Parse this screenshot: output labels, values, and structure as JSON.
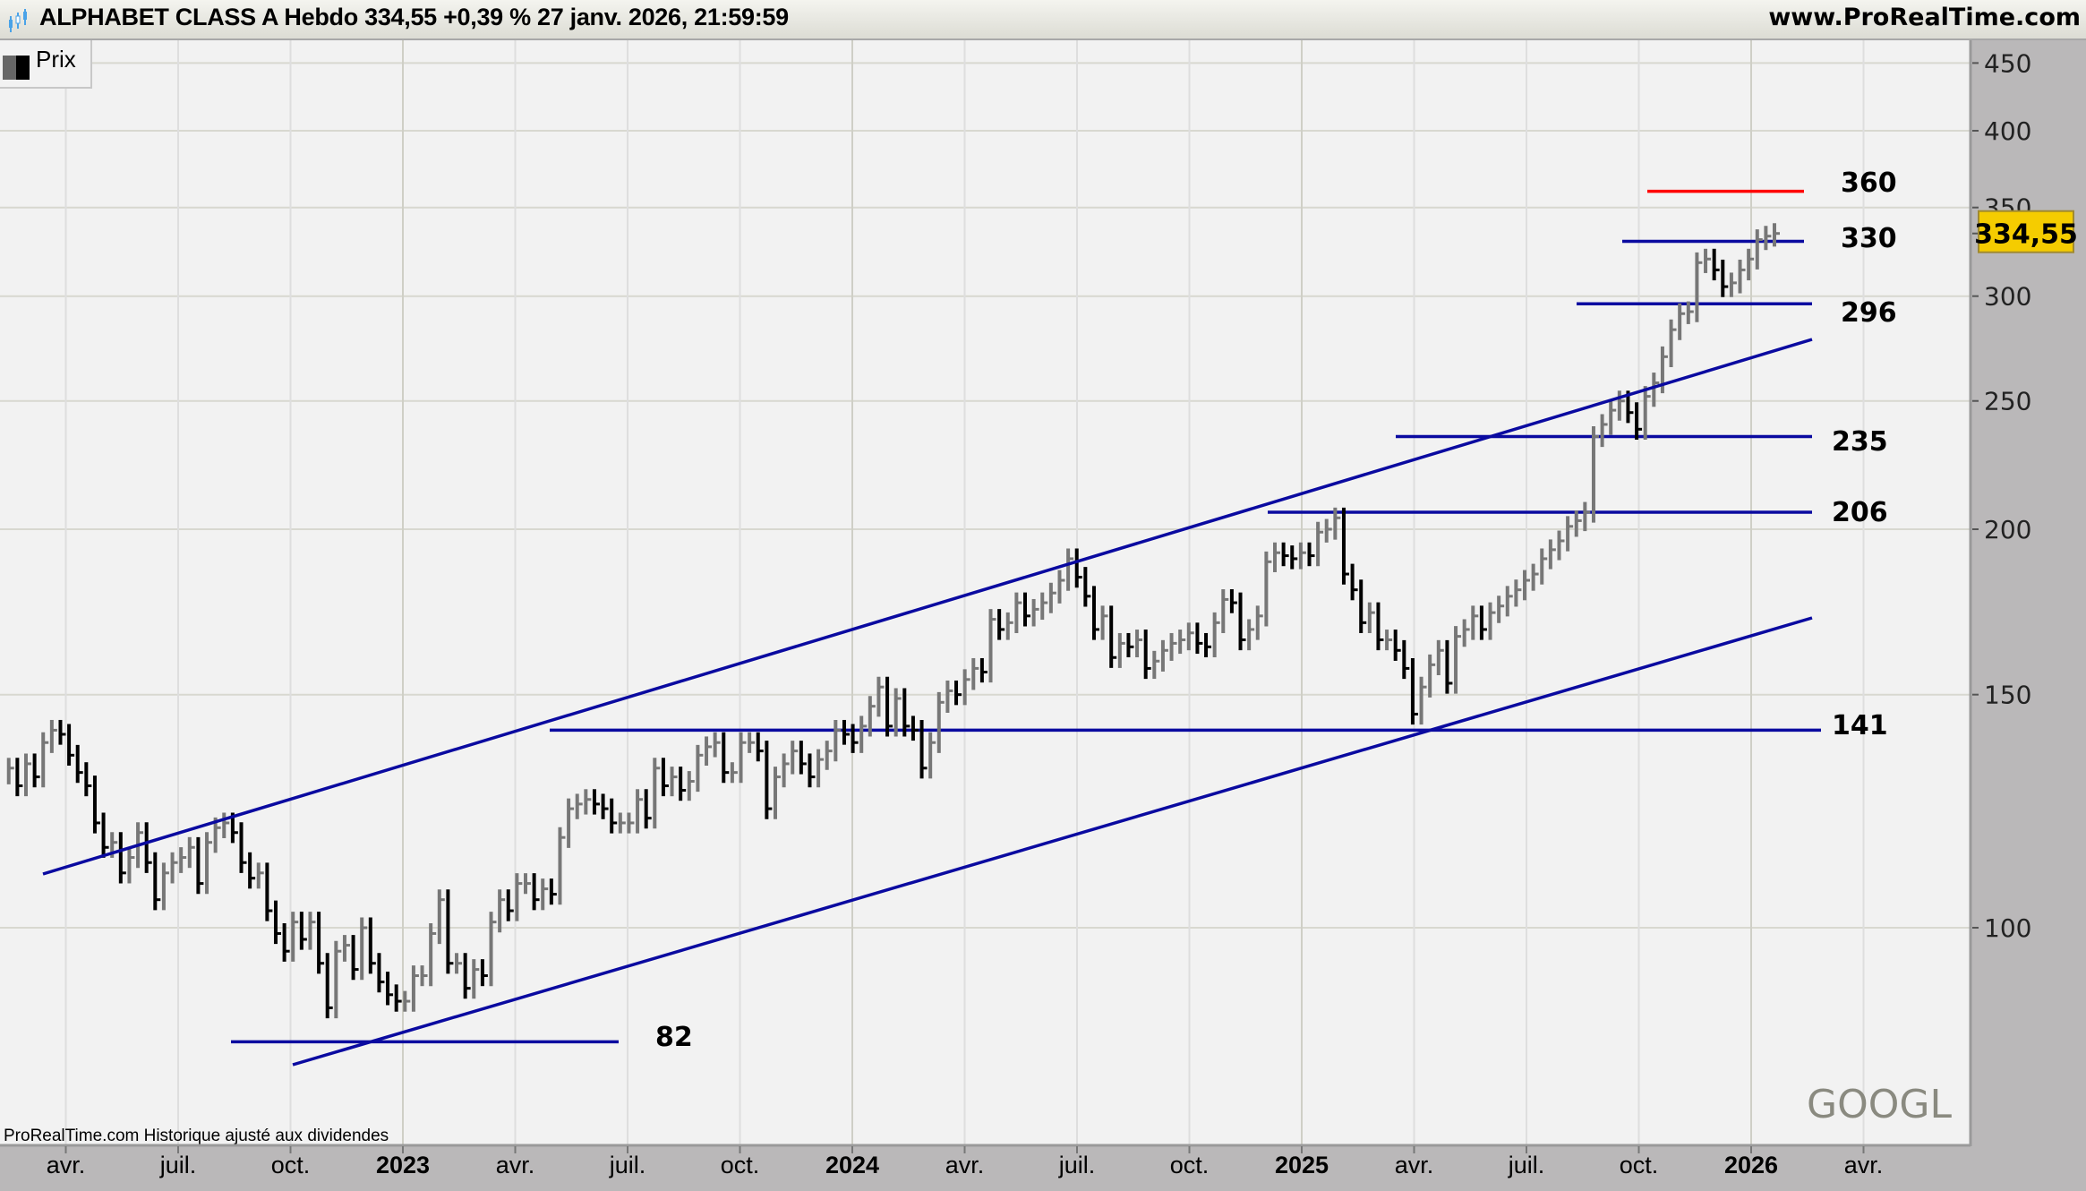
{
  "header": {
    "title": "ALPHABET CLASS A Hebdo 334,55 +0,39 % 27 janv. 2026, 21:59:59",
    "site": "www.ProRealTime.com"
  },
  "legend": {
    "label": "Prix"
  },
  "footer": {
    "text": "ProRealTime.com  Historique ajusté aux dividendes"
  },
  "watermark": "GOOGL",
  "colors": {
    "channel": "#0a0aa0",
    "target": "#ff0000",
    "up_bar": "#777777",
    "down_bar": "#000000",
    "last_price_bg": "#f5cc00",
    "axis_bg": "#bab8b9"
  },
  "chart_data": {
    "type": "ohlc-bar",
    "scale": "log",
    "title": "ALPHABET CLASS A Hebdo",
    "ylim": [
      68,
      470
    ],
    "y_ticks": [
      "100",
      "150",
      "200",
      "250",
      "300",
      "350",
      "400",
      "450"
    ],
    "y_tick_values": [
      100,
      150,
      200,
      250,
      300,
      350,
      400,
      450
    ],
    "x_ticks": [
      "avr.",
      "juil.",
      "oct.",
      "2023",
      "avr.",
      "juil.",
      "oct.",
      "2024",
      "avr.",
      "juil.",
      "oct.",
      "2025",
      "avr.",
      "juil.",
      "oct.",
      "2026",
      "avr."
    ],
    "first_week": "2022-02-14",
    "weekly_closes": [
      132,
      128,
      133,
      130,
      138,
      141,
      140,
      135,
      131,
      128,
      120,
      115,
      116,
      110,
      113,
      118,
      112,
      105,
      110,
      112,
      113,
      115,
      108,
      116,
      119,
      120,
      118,
      112,
      109,
      110,
      103,
      99,
      96,
      101,
      98,
      101,
      94,
      87,
      96,
      97,
      93,
      100,
      94,
      91,
      89,
      88,
      88,
      92,
      92,
      99,
      105,
      94,
      94,
      90,
      93,
      92,
      101,
      105,
      103,
      108,
      108,
      105,
      107,
      106,
      117,
      123,
      124,
      125,
      124,
      123,
      120,
      120,
      120,
      125,
      121,
      132,
      128,
      130,
      127,
      129,
      135,
      137,
      138,
      131,
      131,
      138,
      138,
      136,
      123,
      130,
      133,
      136,
      133,
      130,
      134,
      136,
      141,
      140,
      138,
      142,
      147,
      152,
      142,
      149,
      142,
      141,
      132,
      138,
      148,
      151,
      150,
      154,
      157,
      156,
      171,
      168,
      170,
      176,
      172,
      174,
      176,
      179,
      183,
      190,
      184,
      178,
      168,
      172,
      160,
      164,
      163,
      165,
      157,
      159,
      162,
      164,
      165,
      167,
      164,
      163,
      170,
      177,
      176,
      165,
      168,
      172,
      189,
      192,
      191,
      190,
      192,
      191,
      199,
      200,
      204,
      185,
      180,
      170,
      173,
      165,
      165,
      162,
      157,
      145,
      152,
      158,
      162,
      153,
      166,
      168,
      172,
      168,
      173,
      175,
      178,
      180,
      183,
      185,
      190,
      193,
      196,
      201,
      203,
      206,
      235,
      240,
      246,
      250,
      245,
      238,
      252,
      258,
      270,
      283,
      291,
      292,
      318,
      320,
      314,
      305,
      307,
      314,
      320,
      331,
      333,
      334.55
    ],
    "last_price": "334,55",
    "levels": [
      {
        "label": "82",
        "value": 82,
        "color": "#0a0aa0"
      },
      {
        "label": "141",
        "value": 141,
        "color": "#0a0aa0"
      },
      {
        "label": "206",
        "value": 206,
        "color": "#0a0aa0"
      },
      {
        "label": "235",
        "value": 235,
        "color": "#0a0aa0"
      },
      {
        "label": "296",
        "value": 296,
        "color": "#0a0aa0"
      },
      {
        "label": "330",
        "value": 330,
        "color": "#0a0aa0"
      },
      {
        "label": "360",
        "value": 360,
        "color": "#ff0000"
      }
    ],
    "channel": {
      "upper": [
        {
          "date": "2022-03",
          "value": 119
        },
        {
          "date": "2026-03",
          "value": 274
        }
      ],
      "lower": [
        {
          "date": "2022-10",
          "value": 80
        },
        {
          "date": "2026-03",
          "value": 171
        }
      ]
    }
  }
}
